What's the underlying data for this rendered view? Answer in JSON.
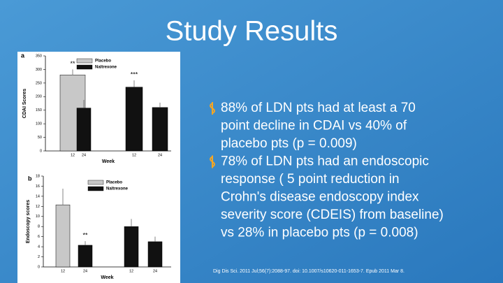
{
  "title": "Study Results",
  "bullets": [
    [
      "88% of LDN pts had at least a 70",
      "point decline in CDAI vs 40% of",
      "placebo pts  (p = 0.009)"
    ],
    [
      "78% of LDN pts had an endoscopic",
      "response ( 5 point reduction in",
      "Crohn's disease endoscopy index",
      "severity score (CDEIS) from baseline)",
      "vs 28% in placebo pts (p = 0.008)"
    ]
  ],
  "citation": "Dig Dis Sci. 2011 Jul;56(7):2088-97. doi: 10.1007/s10620-011-1653-7. Epub 2011 Mar 8.",
  "chart_data": [
    {
      "type": "bar",
      "panel": "a",
      "ylabel": "CDAI Scores",
      "xlabel": "Week",
      "categories": [
        "12",
        "24",
        "12",
        "24"
      ],
      "series": [
        {
          "name": "Placebo",
          "color": "#c8c8c8",
          "values": [
            280,
            null,
            null,
            null
          ],
          "errors": [
            20,
            null,
            null,
            null
          ]
        },
        {
          "name": "Naltrexone",
          "color": "#111111",
          "values": [
            null,
            158,
            235,
            160
          ],
          "errors": [
            null,
            30,
            25,
            18
          ]
        }
      ],
      "annotations": [
        "***",
        "**"
      ],
      "ylim": [
        0,
        350
      ],
      "yticks": [
        0,
        50,
        100,
        150,
        200,
        250,
        300,
        350
      ]
    },
    {
      "type": "bar",
      "panel": "b",
      "ylabel": "Endoscopy scores",
      "xlabel": "Week",
      "categories": [
        "12",
        "24",
        "12",
        "24"
      ],
      "series": [
        {
          "name": "Placebo",
          "color": "#c8c8c8",
          "values": [
            12.3,
            null,
            null,
            null
          ],
          "errors": [
            3.2,
            null,
            null,
            null
          ]
        },
        {
          "name": "Naltrexone",
          "color": "#111111",
          "values": [
            null,
            4.3,
            8,
            5
          ],
          "errors": [
            null,
            0.8,
            1.5,
            1
          ]
        }
      ],
      "annotations": [
        "**"
      ],
      "ylim": [
        0,
        18
      ],
      "yticks": [
        0,
        2,
        4,
        6,
        8,
        10,
        12,
        14,
        16,
        18
      ]
    }
  ]
}
